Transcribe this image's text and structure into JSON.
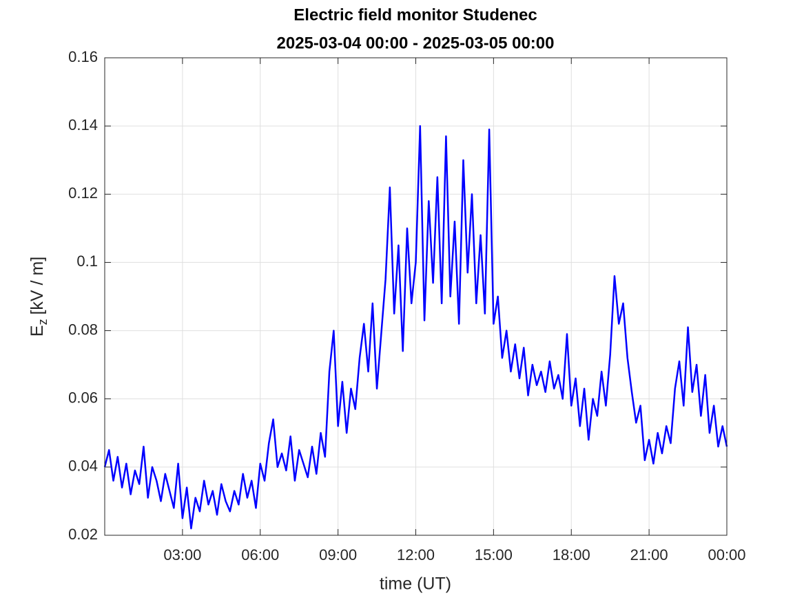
{
  "chart_data": {
    "type": "line",
    "title": "Electric field monitor Studenec",
    "subtitle": "2025-03-04 00:00 - 2025-03-05 00:00",
    "x_label": "time (UT)",
    "y_label": "E",
    "y_label_subscript": "z",
    "y_label_unit": "[kV / m]",
    "color": "#0000ff",
    "grid": true,
    "xlim": [
      0,
      1440
    ],
    "xticks": [
      {
        "value": 180,
        "label": "03:00"
      },
      {
        "value": 360,
        "label": "06:00"
      },
      {
        "value": 540,
        "label": "09:00"
      },
      {
        "value": 720,
        "label": "12:00"
      },
      {
        "value": 900,
        "label": "15:00"
      },
      {
        "value": 1080,
        "label": "18:00"
      },
      {
        "value": 1260,
        "label": "21:00"
      },
      {
        "value": 1440,
        "label": "00:00"
      }
    ],
    "ylim": [
      0.02,
      0.16
    ],
    "yticks": [
      0.02,
      0.04,
      0.06,
      0.08,
      0.1,
      0.12,
      0.14,
      0.16
    ],
    "x": [
      0,
      10,
      20,
      30,
      40,
      50,
      60,
      70,
      80,
      90,
      100,
      110,
      120,
      130,
      140,
      150,
      160,
      170,
      180,
      190,
      200,
      210,
      220,
      230,
      240,
      250,
      260,
      270,
      280,
      290,
      300,
      310,
      320,
      330,
      340,
      350,
      360,
      370,
      380,
      390,
      400,
      410,
      420,
      430,
      440,
      450,
      460,
      470,
      480,
      490,
      500,
      510,
      520,
      530,
      540,
      550,
      560,
      570,
      580,
      590,
      600,
      610,
      620,
      630,
      640,
      650,
      660,
      670,
      680,
      690,
      700,
      710,
      720,
      730,
      740,
      750,
      760,
      770,
      780,
      790,
      800,
      810,
      820,
      830,
      840,
      850,
      860,
      870,
      880,
      890,
      900,
      910,
      920,
      930,
      940,
      950,
      960,
      970,
      980,
      990,
      1000,
      1010,
      1020,
      1030,
      1040,
      1050,
      1060,
      1070,
      1080,
      1090,
      1100,
      1110,
      1120,
      1130,
      1140,
      1150,
      1160,
      1170,
      1180,
      1190,
      1200,
      1210,
      1220,
      1230,
      1240,
      1250,
      1260,
      1270,
      1280,
      1290,
      1300,
      1310,
      1320,
      1330,
      1340,
      1350,
      1360,
      1370,
      1380,
      1390,
      1400,
      1410,
      1420,
      1430,
      1440
    ],
    "values": [
      0.04,
      0.045,
      0.036,
      0.043,
      0.034,
      0.041,
      0.032,
      0.039,
      0.035,
      0.046,
      0.031,
      0.04,
      0.036,
      0.03,
      0.038,
      0.033,
      0.028,
      0.041,
      0.025,
      0.034,
      0.022,
      0.031,
      0.027,
      0.036,
      0.029,
      0.033,
      0.026,
      0.035,
      0.03,
      0.027,
      0.033,
      0.029,
      0.038,
      0.031,
      0.036,
      0.028,
      0.041,
      0.036,
      0.047,
      0.054,
      0.04,
      0.044,
      0.039,
      0.049,
      0.036,
      0.045,
      0.041,
      0.037,
      0.046,
      0.038,
      0.05,
      0.043,
      0.068,
      0.08,
      0.052,
      0.065,
      0.05,
      0.063,
      0.057,
      0.072,
      0.082,
      0.068,
      0.088,
      0.063,
      0.079,
      0.095,
      0.122,
      0.085,
      0.105,
      0.074,
      0.11,
      0.088,
      0.1,
      0.14,
      0.083,
      0.118,
      0.094,
      0.125,
      0.088,
      0.137,
      0.09,
      0.112,
      0.082,
      0.13,
      0.097,
      0.12,
      0.088,
      0.108,
      0.085,
      0.139,
      0.082,
      0.09,
      0.072,
      0.08,
      0.068,
      0.076,
      0.066,
      0.075,
      0.061,
      0.07,
      0.064,
      0.068,
      0.062,
      0.071,
      0.063,
      0.067,
      0.06,
      0.079,
      0.058,
      0.066,
      0.052,
      0.063,
      0.048,
      0.06,
      0.055,
      0.068,
      0.058,
      0.073,
      0.096,
      0.082,
      0.088,
      0.072,
      0.062,
      0.053,
      0.058,
      0.042,
      0.048,
      0.041,
      0.05,
      0.044,
      0.052,
      0.047,
      0.063,
      0.071,
      0.058,
      0.081,
      0.062,
      0.07,
      0.055,
      0.067,
      0.05,
      0.058,
      0.046,
      0.052,
      0.046
    ]
  }
}
